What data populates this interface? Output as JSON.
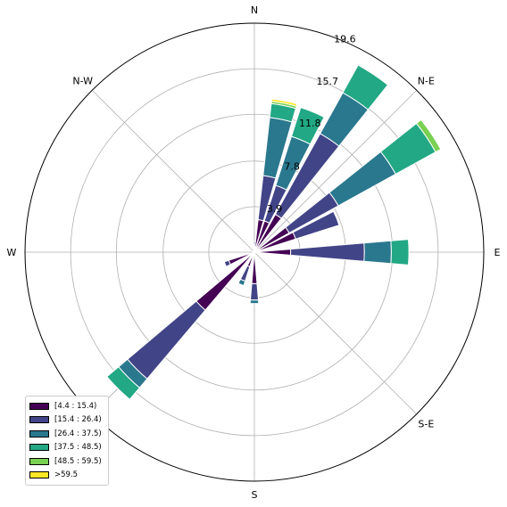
{
  "chart_data": {
    "type": "windrose",
    "directions": [
      "N",
      "N-E",
      "E",
      "S-E",
      "S",
      "W",
      "N-W"
    ],
    "r_ticks": [
      3.9,
      7.8,
      11.8,
      15.7,
      19.6
    ],
    "rmax": 19.6,
    "grid": true,
    "legend_position": "lower-left",
    "bins": [
      {
        "label": "[4.4 : 15.4)",
        "color": "#440154"
      },
      {
        "label": "[15.4 : 26.4)",
        "color": "#414487"
      },
      {
        "label": "[26.4 : 37.5)",
        "color": "#2a788e"
      },
      {
        "label": "[37.5 : 48.5)",
        "color": "#22a884"
      },
      {
        "label": "[48.5 : 59.5)",
        "color": "#7ad151"
      },
      {
        "label": ">59.5",
        "color": "#fde725"
      }
    ],
    "sectors": [
      {
        "angle": 0,
        "values": [
          0.4,
          0.3,
          0.2,
          0.0,
          0.0,
          0.0
        ]
      },
      {
        "angle": 11.25,
        "values": [
          2.8,
          3.8,
          5.0,
          1.2,
          0.2,
          0.2
        ]
      },
      {
        "angle": 22.5,
        "values": [
          2.8,
          3.2,
          4.4,
          2.6,
          0.0,
          0.0
        ]
      },
      {
        "angle": 33.75,
        "values": [
          3.7,
          7.9,
          4.0,
          2.7,
          0.0,
          0.0
        ]
      },
      {
        "angle": 45,
        "values": [
          0.0,
          0.0,
          0.0,
          0.0,
          0.0,
          0.0
        ]
      },
      {
        "angle": 56.25,
        "values": [
          3.4,
          4.8,
          5.6,
          3.9,
          0.5,
          0.0
        ]
      },
      {
        "angle": 67.5,
        "values": [
          3.7,
          3.9,
          0.0,
          0.0,
          0.0,
          0.0
        ]
      },
      {
        "angle": 78.75,
        "values": [
          0.0,
          0.0,
          0.0,
          0.0,
          0.0,
          0.0
        ]
      },
      {
        "angle": 90,
        "values": [
          3.1,
          6.3,
          2.3,
          1.5,
          0.0,
          0.0
        ]
      },
      {
        "angle": 101.25,
        "values": [
          0.3,
          0.2,
          0.0,
          0.0,
          0.0,
          0.0
        ]
      },
      {
        "angle": 112.5,
        "values": [
          0.0,
          0.0,
          0.0,
          0.0,
          0.0,
          0.0
        ]
      },
      {
        "angle": 135,
        "values": [
          0.0,
          0.0,
          0.0,
          0.0,
          0.0,
          0.0
        ]
      },
      {
        "angle": 157.5,
        "values": [
          0.3,
          0.2,
          0.0,
          0.0,
          0.0,
          0.0
        ]
      },
      {
        "angle": 180,
        "values": [
          2.7,
          1.4,
          0.3,
          0.0,
          0.0,
          0.0
        ]
      },
      {
        "angle": 191.25,
        "values": [
          0.0,
          0.0,
          0.0,
          0.0,
          0.0,
          0.0
        ]
      },
      {
        "angle": 202.5,
        "values": [
          1.3,
          1.3,
          0.4,
          0.0,
          0.0,
          0.0
        ]
      },
      {
        "angle": 225,
        "values": [
          6.5,
          7.7,
          1.0,
          1.3,
          0.0,
          0.0
        ]
      },
      {
        "angle": 247.5,
        "values": [
          2.3,
          0.4,
          0.0,
          0.0,
          0.0,
          0.0
        ]
      },
      {
        "angle": 292.5,
        "values": [
          0.2,
          0.0,
          0.0,
          0.0,
          0.0,
          0.0
        ]
      },
      {
        "angle": 337.5,
        "values": [
          0.3,
          0.2,
          0.0,
          0.0,
          0.0,
          0.0
        ]
      },
      {
        "angle": 348.75,
        "values": [
          0.3,
          0.2,
          0.0,
          0.0,
          0.0,
          0.0
        ]
      }
    ]
  }
}
